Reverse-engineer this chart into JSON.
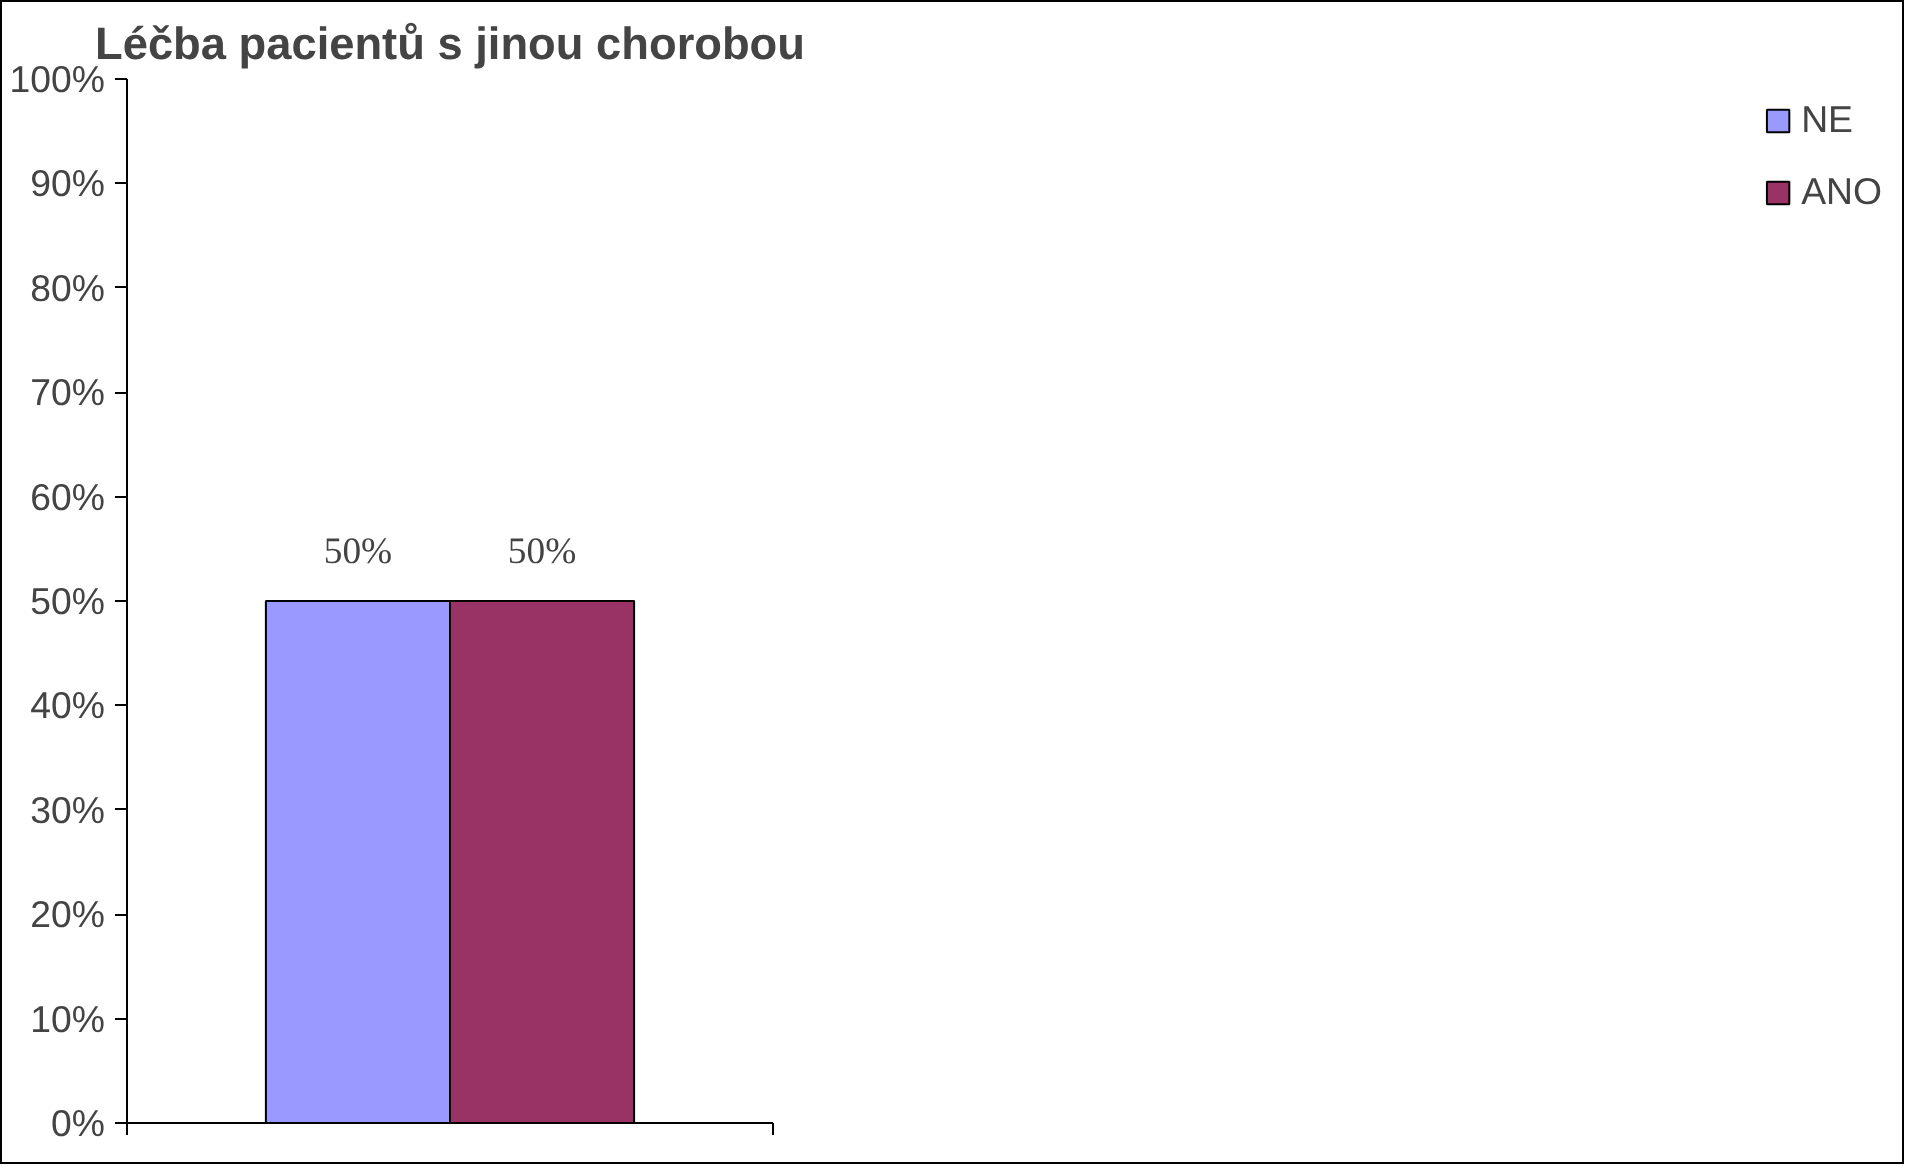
{
  "chart_data": {
    "type": "bar",
    "title": "Léčba pacientů s jinou chorobou",
    "categories": [
      null
    ],
    "series": [
      {
        "name": "NE",
        "color": "#9999ff",
        "values": [
          50
        ],
        "value_labels": [
          "50%"
        ]
      },
      {
        "name": "ANO",
        "color": "#993366",
        "values": [
          50
        ],
        "value_labels": [
          "50%"
        ]
      }
    ],
    "ylim": [
      0,
      100
    ],
    "yticks": [
      {
        "value": 0,
        "label": "0%"
      },
      {
        "value": 10,
        "label": "10%"
      },
      {
        "value": 20,
        "label": "20%"
      },
      {
        "value": 30,
        "label": "30%"
      },
      {
        "value": 40,
        "label": "40%"
      },
      {
        "value": 50,
        "label": "50%"
      },
      {
        "value": 60,
        "label": "60%"
      },
      {
        "value": 70,
        "label": "70%"
      },
      {
        "value": 80,
        "label": "80%"
      },
      {
        "value": 90,
        "label": "90%"
      },
      {
        "value": 100,
        "label": "100%"
      }
    ],
    "grid": false,
    "legend": "right"
  }
}
